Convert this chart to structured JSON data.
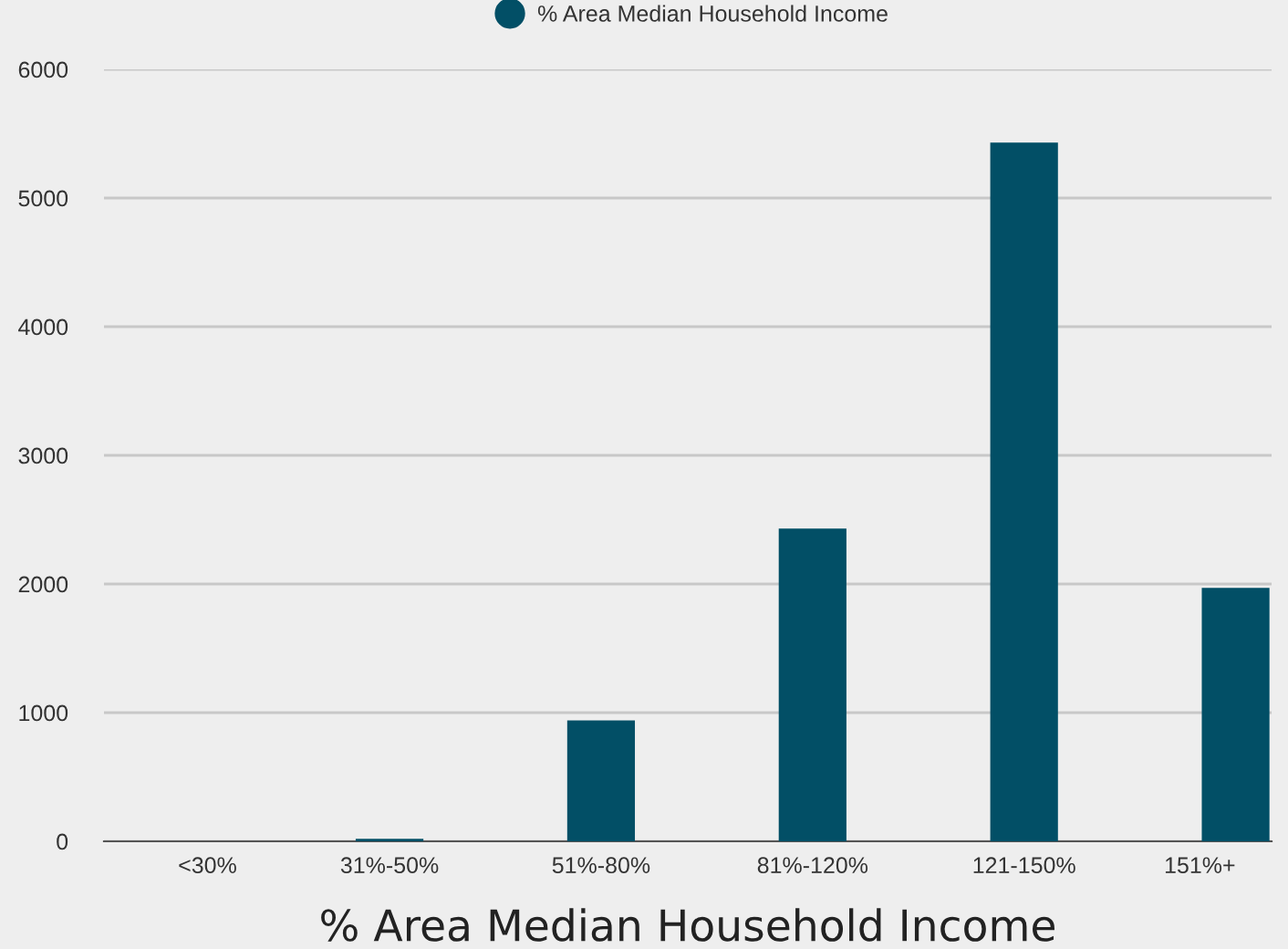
{
  "chart_data": {
    "type": "bar",
    "xlabel": "% Area Median Household Income",
    "categories": [
      "<30%",
      "31%-50%",
      "51%-80%",
      "81%-120%",
      "121-150%",
      "151%+"
    ],
    "series": [
      {
        "name": "% Area Median Household Income",
        "color": "#024f66",
        "values": [
          0,
          20,
          940,
          2430,
          5430,
          1970
        ]
      }
    ],
    "ylim": [
      0,
      6000
    ],
    "yticks": [
      0,
      1000,
      2000,
      3000,
      4000,
      5000,
      6000
    ],
    "grid": "y",
    "legend": "top"
  }
}
